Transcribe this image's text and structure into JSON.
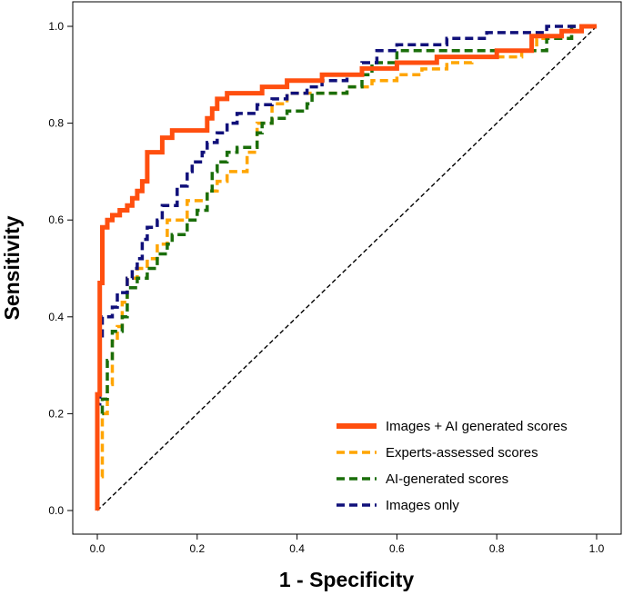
{
  "chart_data": {
    "type": "line",
    "xlabel": "1 - Specificity",
    "ylabel": "Sensitivity",
    "xlim": [
      -0.05,
      1.05
    ],
    "ylim": [
      -0.05,
      1.05
    ],
    "x_ticks": [
      "0.0",
      "0.2",
      "0.4",
      "0.6",
      "0.8",
      "1.0"
    ],
    "y_ticks": [
      "0.0",
      "0.2",
      "0.4",
      "0.6",
      "0.8",
      "1.0"
    ],
    "grid": false,
    "legend_position": "bottom-right",
    "series": [
      {
        "name": "Images + AI generated scores",
        "color": "#ff4f0f",
        "dash": "solid",
        "points": [
          [
            0,
            0
          ],
          [
            0,
            0.24
          ],
          [
            0.005,
            0.24
          ],
          [
            0.005,
            0.47
          ],
          [
            0.01,
            0.47
          ],
          [
            0.01,
            0.585
          ],
          [
            0.02,
            0.585
          ],
          [
            0.02,
            0.6
          ],
          [
            0.03,
            0.6
          ],
          [
            0.03,
            0.61
          ],
          [
            0.045,
            0.61
          ],
          [
            0.045,
            0.62
          ],
          [
            0.06,
            0.62
          ],
          [
            0.06,
            0.63
          ],
          [
            0.07,
            0.63
          ],
          [
            0.07,
            0.645
          ],
          [
            0.08,
            0.645
          ],
          [
            0.08,
            0.66
          ],
          [
            0.09,
            0.66
          ],
          [
            0.09,
            0.68
          ],
          [
            0.1,
            0.68
          ],
          [
            0.1,
            0.74
          ],
          [
            0.13,
            0.74
          ],
          [
            0.13,
            0.77
          ],
          [
            0.15,
            0.77
          ],
          [
            0.15,
            0.785
          ],
          [
            0.22,
            0.785
          ],
          [
            0.22,
            0.81
          ],
          [
            0.23,
            0.81
          ],
          [
            0.23,
            0.83
          ],
          [
            0.24,
            0.83
          ],
          [
            0.24,
            0.85
          ],
          [
            0.26,
            0.85
          ],
          [
            0.26,
            0.862
          ],
          [
            0.33,
            0.862
          ],
          [
            0.33,
            0.875
          ],
          [
            0.38,
            0.875
          ],
          [
            0.38,
            0.888
          ],
          [
            0.45,
            0.888
          ],
          [
            0.45,
            0.9
          ],
          [
            0.53,
            0.9
          ],
          [
            0.53,
            0.913
          ],
          [
            0.6,
            0.913
          ],
          [
            0.6,
            0.925
          ],
          [
            0.68,
            0.925
          ],
          [
            0.68,
            0.937
          ],
          [
            0.8,
            0.937
          ],
          [
            0.8,
            0.95
          ],
          [
            0.87,
            0.95
          ],
          [
            0.87,
            0.98
          ],
          [
            0.93,
            0.98
          ],
          [
            0.93,
            0.99
          ],
          [
            0.97,
            0.99
          ],
          [
            0.97,
            1.0
          ],
          [
            1.0,
            1.0
          ]
        ]
      },
      {
        "name": "Experts-assessed scores",
        "color": "#ffa500",
        "dash": "dashed",
        "points": [
          [
            0,
            0
          ],
          [
            0,
            0.07
          ],
          [
            0.01,
            0.07
          ],
          [
            0.01,
            0.2
          ],
          [
            0.02,
            0.2
          ],
          [
            0.02,
            0.26
          ],
          [
            0.03,
            0.26
          ],
          [
            0.03,
            0.35
          ],
          [
            0.04,
            0.35
          ],
          [
            0.04,
            0.38
          ],
          [
            0.05,
            0.38
          ],
          [
            0.05,
            0.43
          ],
          [
            0.06,
            0.43
          ],
          [
            0.06,
            0.48
          ],
          [
            0.08,
            0.48
          ],
          [
            0.08,
            0.5
          ],
          [
            0.1,
            0.5
          ],
          [
            0.1,
            0.52
          ],
          [
            0.12,
            0.52
          ],
          [
            0.12,
            0.55
          ],
          [
            0.14,
            0.55
          ],
          [
            0.14,
            0.6
          ],
          [
            0.18,
            0.6
          ],
          [
            0.18,
            0.64
          ],
          [
            0.22,
            0.64
          ],
          [
            0.22,
            0.66
          ],
          [
            0.24,
            0.66
          ],
          [
            0.24,
            0.68
          ],
          [
            0.26,
            0.68
          ],
          [
            0.26,
            0.7
          ],
          [
            0.3,
            0.7
          ],
          [
            0.3,
            0.74
          ],
          [
            0.32,
            0.74
          ],
          [
            0.32,
            0.8
          ],
          [
            0.35,
            0.8
          ],
          [
            0.35,
            0.84
          ],
          [
            0.38,
            0.84
          ],
          [
            0.38,
            0.862
          ],
          [
            0.5,
            0.862
          ],
          [
            0.5,
            0.875
          ],
          [
            0.55,
            0.875
          ],
          [
            0.55,
            0.888
          ],
          [
            0.6,
            0.888
          ],
          [
            0.6,
            0.9
          ],
          [
            0.65,
            0.9
          ],
          [
            0.65,
            0.912
          ],
          [
            0.7,
            0.912
          ],
          [
            0.7,
            0.925
          ],
          [
            0.75,
            0.925
          ],
          [
            0.75,
            0.937
          ],
          [
            0.85,
            0.937
          ],
          [
            0.85,
            0.95
          ],
          [
            0.88,
            0.95
          ],
          [
            0.88,
            0.975
          ],
          [
            0.95,
            0.975
          ],
          [
            0.95,
            1.0
          ],
          [
            1.0,
            1.0
          ]
        ]
      },
      {
        "name": "AI-generated scores",
        "color": "#1a6e0a",
        "dash": "dashed",
        "points": [
          [
            0,
            0
          ],
          [
            0,
            0.2
          ],
          [
            0.01,
            0.2
          ],
          [
            0.01,
            0.23
          ],
          [
            0.02,
            0.23
          ],
          [
            0.02,
            0.31
          ],
          [
            0.03,
            0.31
          ],
          [
            0.03,
            0.37
          ],
          [
            0.05,
            0.37
          ],
          [
            0.05,
            0.4
          ],
          [
            0.06,
            0.4
          ],
          [
            0.06,
            0.46
          ],
          [
            0.08,
            0.46
          ],
          [
            0.08,
            0.48
          ],
          [
            0.1,
            0.48
          ],
          [
            0.1,
            0.5
          ],
          [
            0.12,
            0.5
          ],
          [
            0.12,
            0.53
          ],
          [
            0.14,
            0.53
          ],
          [
            0.14,
            0.55
          ],
          [
            0.15,
            0.55
          ],
          [
            0.15,
            0.57
          ],
          [
            0.18,
            0.57
          ],
          [
            0.18,
            0.6
          ],
          [
            0.2,
            0.6
          ],
          [
            0.2,
            0.62
          ],
          [
            0.22,
            0.62
          ],
          [
            0.22,
            0.66
          ],
          [
            0.23,
            0.66
          ],
          [
            0.23,
            0.7
          ],
          [
            0.24,
            0.7
          ],
          [
            0.24,
            0.72
          ],
          [
            0.26,
            0.72
          ],
          [
            0.26,
            0.74
          ],
          [
            0.28,
            0.74
          ],
          [
            0.28,
            0.75
          ],
          [
            0.32,
            0.75
          ],
          [
            0.32,
            0.78
          ],
          [
            0.33,
            0.78
          ],
          [
            0.33,
            0.8
          ],
          [
            0.35,
            0.8
          ],
          [
            0.35,
            0.81
          ],
          [
            0.38,
            0.81
          ],
          [
            0.38,
            0.825
          ],
          [
            0.42,
            0.825
          ],
          [
            0.42,
            0.84
          ],
          [
            0.43,
            0.84
          ],
          [
            0.43,
            0.862
          ],
          [
            0.5,
            0.862
          ],
          [
            0.5,
            0.875
          ],
          [
            0.53,
            0.875
          ],
          [
            0.53,
            0.9
          ],
          [
            0.55,
            0.9
          ],
          [
            0.55,
            0.925
          ],
          [
            0.6,
            0.925
          ],
          [
            0.6,
            0.95
          ],
          [
            0.9,
            0.95
          ],
          [
            0.9,
            0.975
          ],
          [
            0.95,
            0.975
          ],
          [
            0.95,
            1.0
          ],
          [
            1.0,
            1.0
          ]
        ]
      },
      {
        "name": "Images only",
        "color": "#10107a",
        "dash": "dashed",
        "points": [
          [
            0,
            0
          ],
          [
            0,
            0.22
          ],
          [
            0.005,
            0.22
          ],
          [
            0.005,
            0.35
          ],
          [
            0.01,
            0.35
          ],
          [
            0.01,
            0.4
          ],
          [
            0.03,
            0.4
          ],
          [
            0.03,
            0.42
          ],
          [
            0.04,
            0.42
          ],
          [
            0.04,
            0.45
          ],
          [
            0.06,
            0.45
          ],
          [
            0.06,
            0.48
          ],
          [
            0.07,
            0.48
          ],
          [
            0.07,
            0.5
          ],
          [
            0.08,
            0.5
          ],
          [
            0.08,
            0.52
          ],
          [
            0.09,
            0.52
          ],
          [
            0.09,
            0.56
          ],
          [
            0.1,
            0.56
          ],
          [
            0.1,
            0.585
          ],
          [
            0.12,
            0.585
          ],
          [
            0.12,
            0.6
          ],
          [
            0.13,
            0.6
          ],
          [
            0.13,
            0.63
          ],
          [
            0.16,
            0.63
          ],
          [
            0.16,
            0.67
          ],
          [
            0.18,
            0.67
          ],
          [
            0.18,
            0.7
          ],
          [
            0.19,
            0.7
          ],
          [
            0.19,
            0.72
          ],
          [
            0.21,
            0.72
          ],
          [
            0.21,
            0.74
          ],
          [
            0.22,
            0.74
          ],
          [
            0.22,
            0.76
          ],
          [
            0.24,
            0.76
          ],
          [
            0.24,
            0.78
          ],
          [
            0.26,
            0.78
          ],
          [
            0.26,
            0.8
          ],
          [
            0.28,
            0.8
          ],
          [
            0.28,
            0.82
          ],
          [
            0.32,
            0.82
          ],
          [
            0.32,
            0.838
          ],
          [
            0.35,
            0.838
          ],
          [
            0.35,
            0.85
          ],
          [
            0.38,
            0.85
          ],
          [
            0.38,
            0.862
          ],
          [
            0.42,
            0.862
          ],
          [
            0.42,
            0.875
          ],
          [
            0.45,
            0.875
          ],
          [
            0.45,
            0.888
          ],
          [
            0.5,
            0.888
          ],
          [
            0.5,
            0.9
          ],
          [
            0.53,
            0.9
          ],
          [
            0.53,
            0.925
          ],
          [
            0.56,
            0.925
          ],
          [
            0.56,
            0.95
          ],
          [
            0.6,
            0.95
          ],
          [
            0.6,
            0.962
          ],
          [
            0.7,
            0.962
          ],
          [
            0.7,
            0.975
          ],
          [
            0.78,
            0.975
          ],
          [
            0.78,
            0.987
          ],
          [
            0.9,
            0.987
          ],
          [
            0.9,
            1.0
          ],
          [
            1.0,
            1.0
          ]
        ]
      },
      {
        "name": "",
        "color": "#000000",
        "dash": "dashed-fine",
        "points": [
          [
            0,
            0
          ],
          [
            1,
            1
          ]
        ]
      }
    ]
  }
}
